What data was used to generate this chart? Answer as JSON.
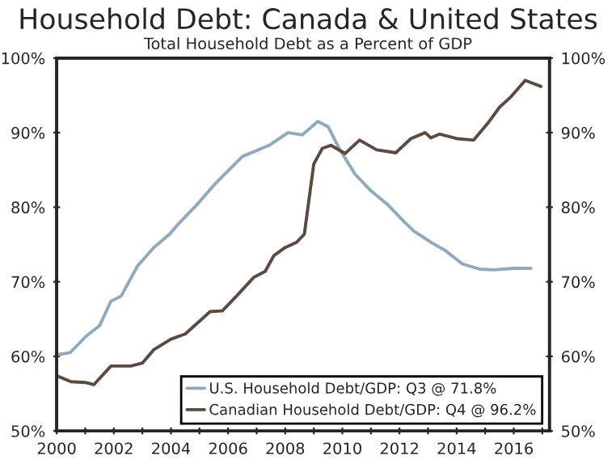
{
  "chart_data": {
    "type": "line",
    "title": "Household Debt: Canada & United States",
    "subtitle": "Total Household Debt as a Percent of GDP",
    "xlim": [
      2000,
      2017.25
    ],
    "xticks": [
      2000,
      {
        "value": 2001,
        "label": null
      },
      2002,
      {
        "value": 2003,
        "label": null
      },
      2004,
      {
        "value": 2005,
        "label": null
      },
      2006,
      {
        "value": 2007,
        "label": null
      },
      2008,
      {
        "value": 2009,
        "label": null
      },
      2010,
      {
        "value": 2011,
        "label": null
      },
      2012,
      {
        "value": 2013,
        "label": null
      },
      2014,
      {
        "value": 2015,
        "label": null
      },
      2016,
      {
        "value": 2017,
        "label": null
      }
    ],
    "ylim": [
      50,
      100
    ],
    "yticks": [
      {
        "value": 50,
        "label": "50%"
      },
      {
        "value": 60,
        "label": "60%"
      },
      {
        "value": 70,
        "label": "70%"
      },
      {
        "value": 80,
        "label": "80%"
      },
      {
        "value": 90,
        "label": "90%"
      },
      {
        "value": 100,
        "label": "100%"
      }
    ],
    "y2lim": [
      50,
      100
    ],
    "y2ticks": [
      {
        "value": 50,
        "label": "50%"
      },
      {
        "value": 60,
        "label": "60%"
      },
      {
        "value": 70,
        "label": "70%"
      },
      {
        "value": 80,
        "label": "80%"
      },
      {
        "value": 90,
        "label": "90%"
      },
      {
        "value": 100,
        "label": "100%"
      }
    ],
    "grid": false,
    "legend": "bottom right",
    "marker": "none",
    "line_style": "solid",
    "series": [
      {
        "name": "U.S. Household Debt/GDP: Q3 @ 71.8%",
        "color": "#8fa9bd",
        "x": [
          2000,
          2000.47,
          2001.03,
          2001.5,
          2001.9,
          2002.26,
          2002.83,
          2003.4,
          2003.96,
          2004.2,
          2004.9,
          2005.56,
          2006.5,
          2007.44,
          2008.1,
          2008.6,
          2009.14,
          2009.5,
          2009.9,
          2010.45,
          2011.0,
          2011.6,
          2012.15,
          2012.5,
          2013.1,
          2013.6,
          2014.2,
          2014.8,
          2015.3,
          2016.0,
          2016.6
        ],
        "values": [
          60.2,
          60.5,
          62.7,
          64.1,
          67.4,
          68.1,
          72.1,
          74.6,
          76.4,
          77.5,
          80.3,
          83.2,
          86.8,
          88.3,
          90.0,
          89.7,
          91.5,
          90.8,
          87.8,
          84.4,
          82.2,
          80.3,
          78.1,
          76.8,
          75.3,
          74.2,
          72.4,
          71.7,
          71.6,
          71.8,
          71.8
        ]
      },
      {
        "name": "Canadian Household Debt/GDP: Q4 @ 96.2%",
        "color": "#5a4a42",
        "x": [
          2000,
          2000.5,
          2001.0,
          2001.3,
          2001.9,
          2002.6,
          2003.0,
          2003.4,
          2004.0,
          2004.5,
          2005.37,
          2005.8,
          2006.3,
          2006.9,
          2007.3,
          2007.6,
          2008.0,
          2008.4,
          2008.67,
          2009.0,
          2009.3,
          2009.6,
          2010.1,
          2010.6,
          2011.2,
          2011.87,
          2012.4,
          2012.9,
          2013.1,
          2013.4,
          2014.0,
          2014.6,
          2015.1,
          2015.5,
          2015.9,
          2016.4,
          2016.95
        ],
        "values": [
          57.4,
          56.6,
          56.5,
          56.2,
          58.7,
          58.7,
          59.1,
          60.9,
          62.3,
          63.0,
          66.0,
          66.1,
          68.1,
          70.6,
          71.4,
          73.5,
          74.6,
          75.3,
          76.4,
          85.8,
          87.9,
          88.3,
          87.2,
          89.0,
          87.7,
          87.3,
          89.2,
          90.0,
          89.3,
          89.8,
          89.2,
          89.0,
          91.3,
          93.4,
          94.8,
          97.0,
          96.2
        ]
      }
    ]
  }
}
